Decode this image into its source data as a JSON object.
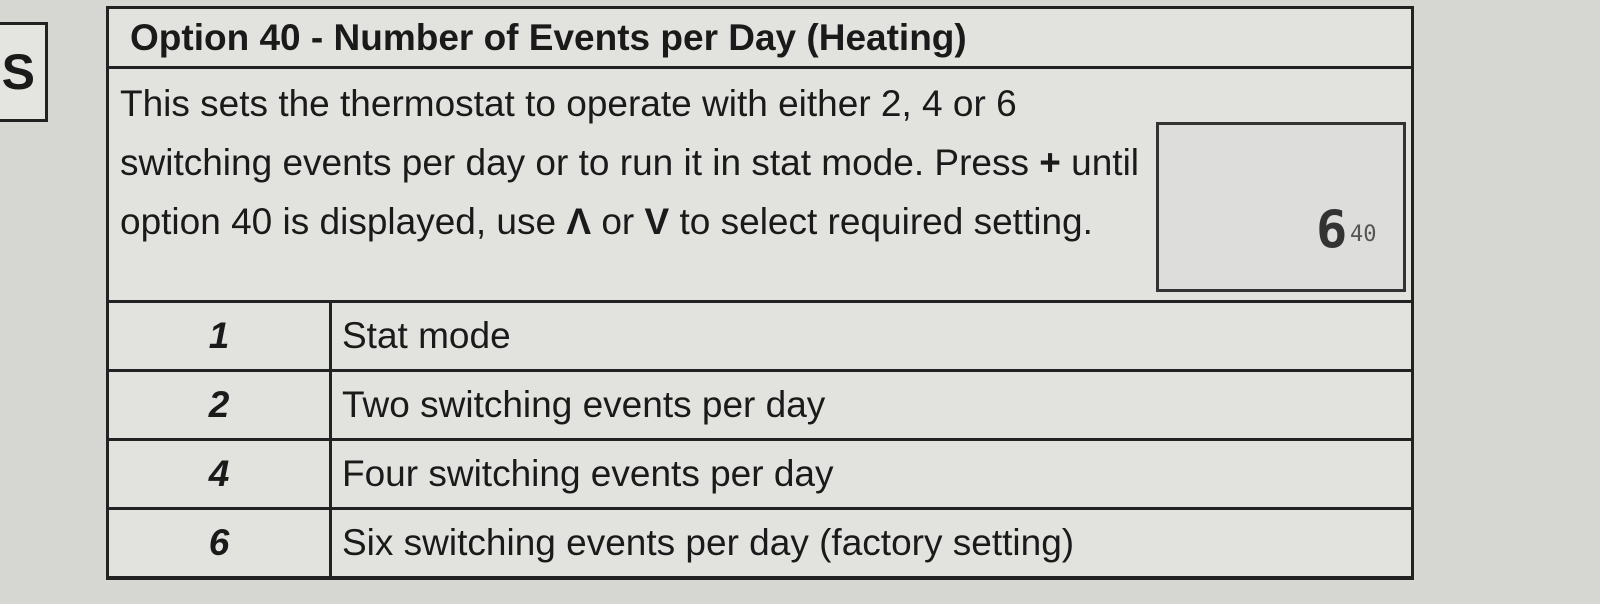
{
  "tab": "S",
  "header": {
    "title": "Option 40 - Number of Events per Day (Heating)"
  },
  "description": [
    "This sets the thermostat to operate with either 2, 4 or 6 switching events per day or to run it in stat mode. Press ",
    "+",
    " until option 40 is displayed, use ",
    "Λ",
    " or ",
    "V",
    " to select required setting."
  ],
  "display": {
    "value": "6",
    "option": "40"
  },
  "table": {
    "rows": [
      [
        "1",
        "Stat mode"
      ],
      [
        "2",
        "Two switching events per day"
      ],
      [
        "4",
        "Four switching events per day"
      ],
      [
        "6",
        "Six switching events per day (factory setting)"
      ]
    ]
  }
}
